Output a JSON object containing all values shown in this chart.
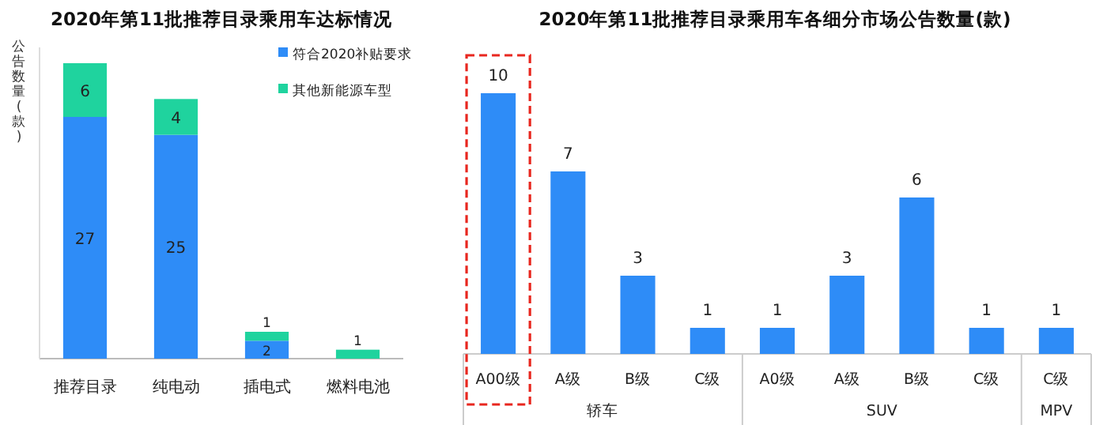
{
  "chart_data": [
    {
      "type": "bar",
      "title": "2020年第11批推荐目录乘用车达标情况",
      "ylabel": "公告数量(款)",
      "categories": [
        "推荐目录",
        "纯电动",
        "插电式",
        "燃料电池"
      ],
      "stacked": true,
      "data_labels": true,
      "legend": "top right",
      "series": [
        {
          "name": "符合2020补贴要求",
          "color": "#2e8cf7",
          "values": [
            27,
            25,
            2,
            null
          ]
        },
        {
          "name": "其他新能源车型",
          "color": "#1fd39e",
          "values": [
            6,
            4,
            1,
            1
          ]
        }
      ]
    },
    {
      "type": "bar",
      "title": "2020年第11批推荐目录乘用车各细分市场公告数量(款)",
      "categories": [
        "A00级",
        "A级",
        "B级",
        "C级",
        "A0级",
        "A级",
        "B级",
        "C级",
        "C级"
      ],
      "values": [
        10,
        7,
        3,
        1,
        1,
        3,
        6,
        1,
        1
      ],
      "color": "#2e8cf7",
      "data_labels": true,
      "annotations": [
        "轿车",
        "SUV",
        "MPV"
      ]
    }
  ]
}
